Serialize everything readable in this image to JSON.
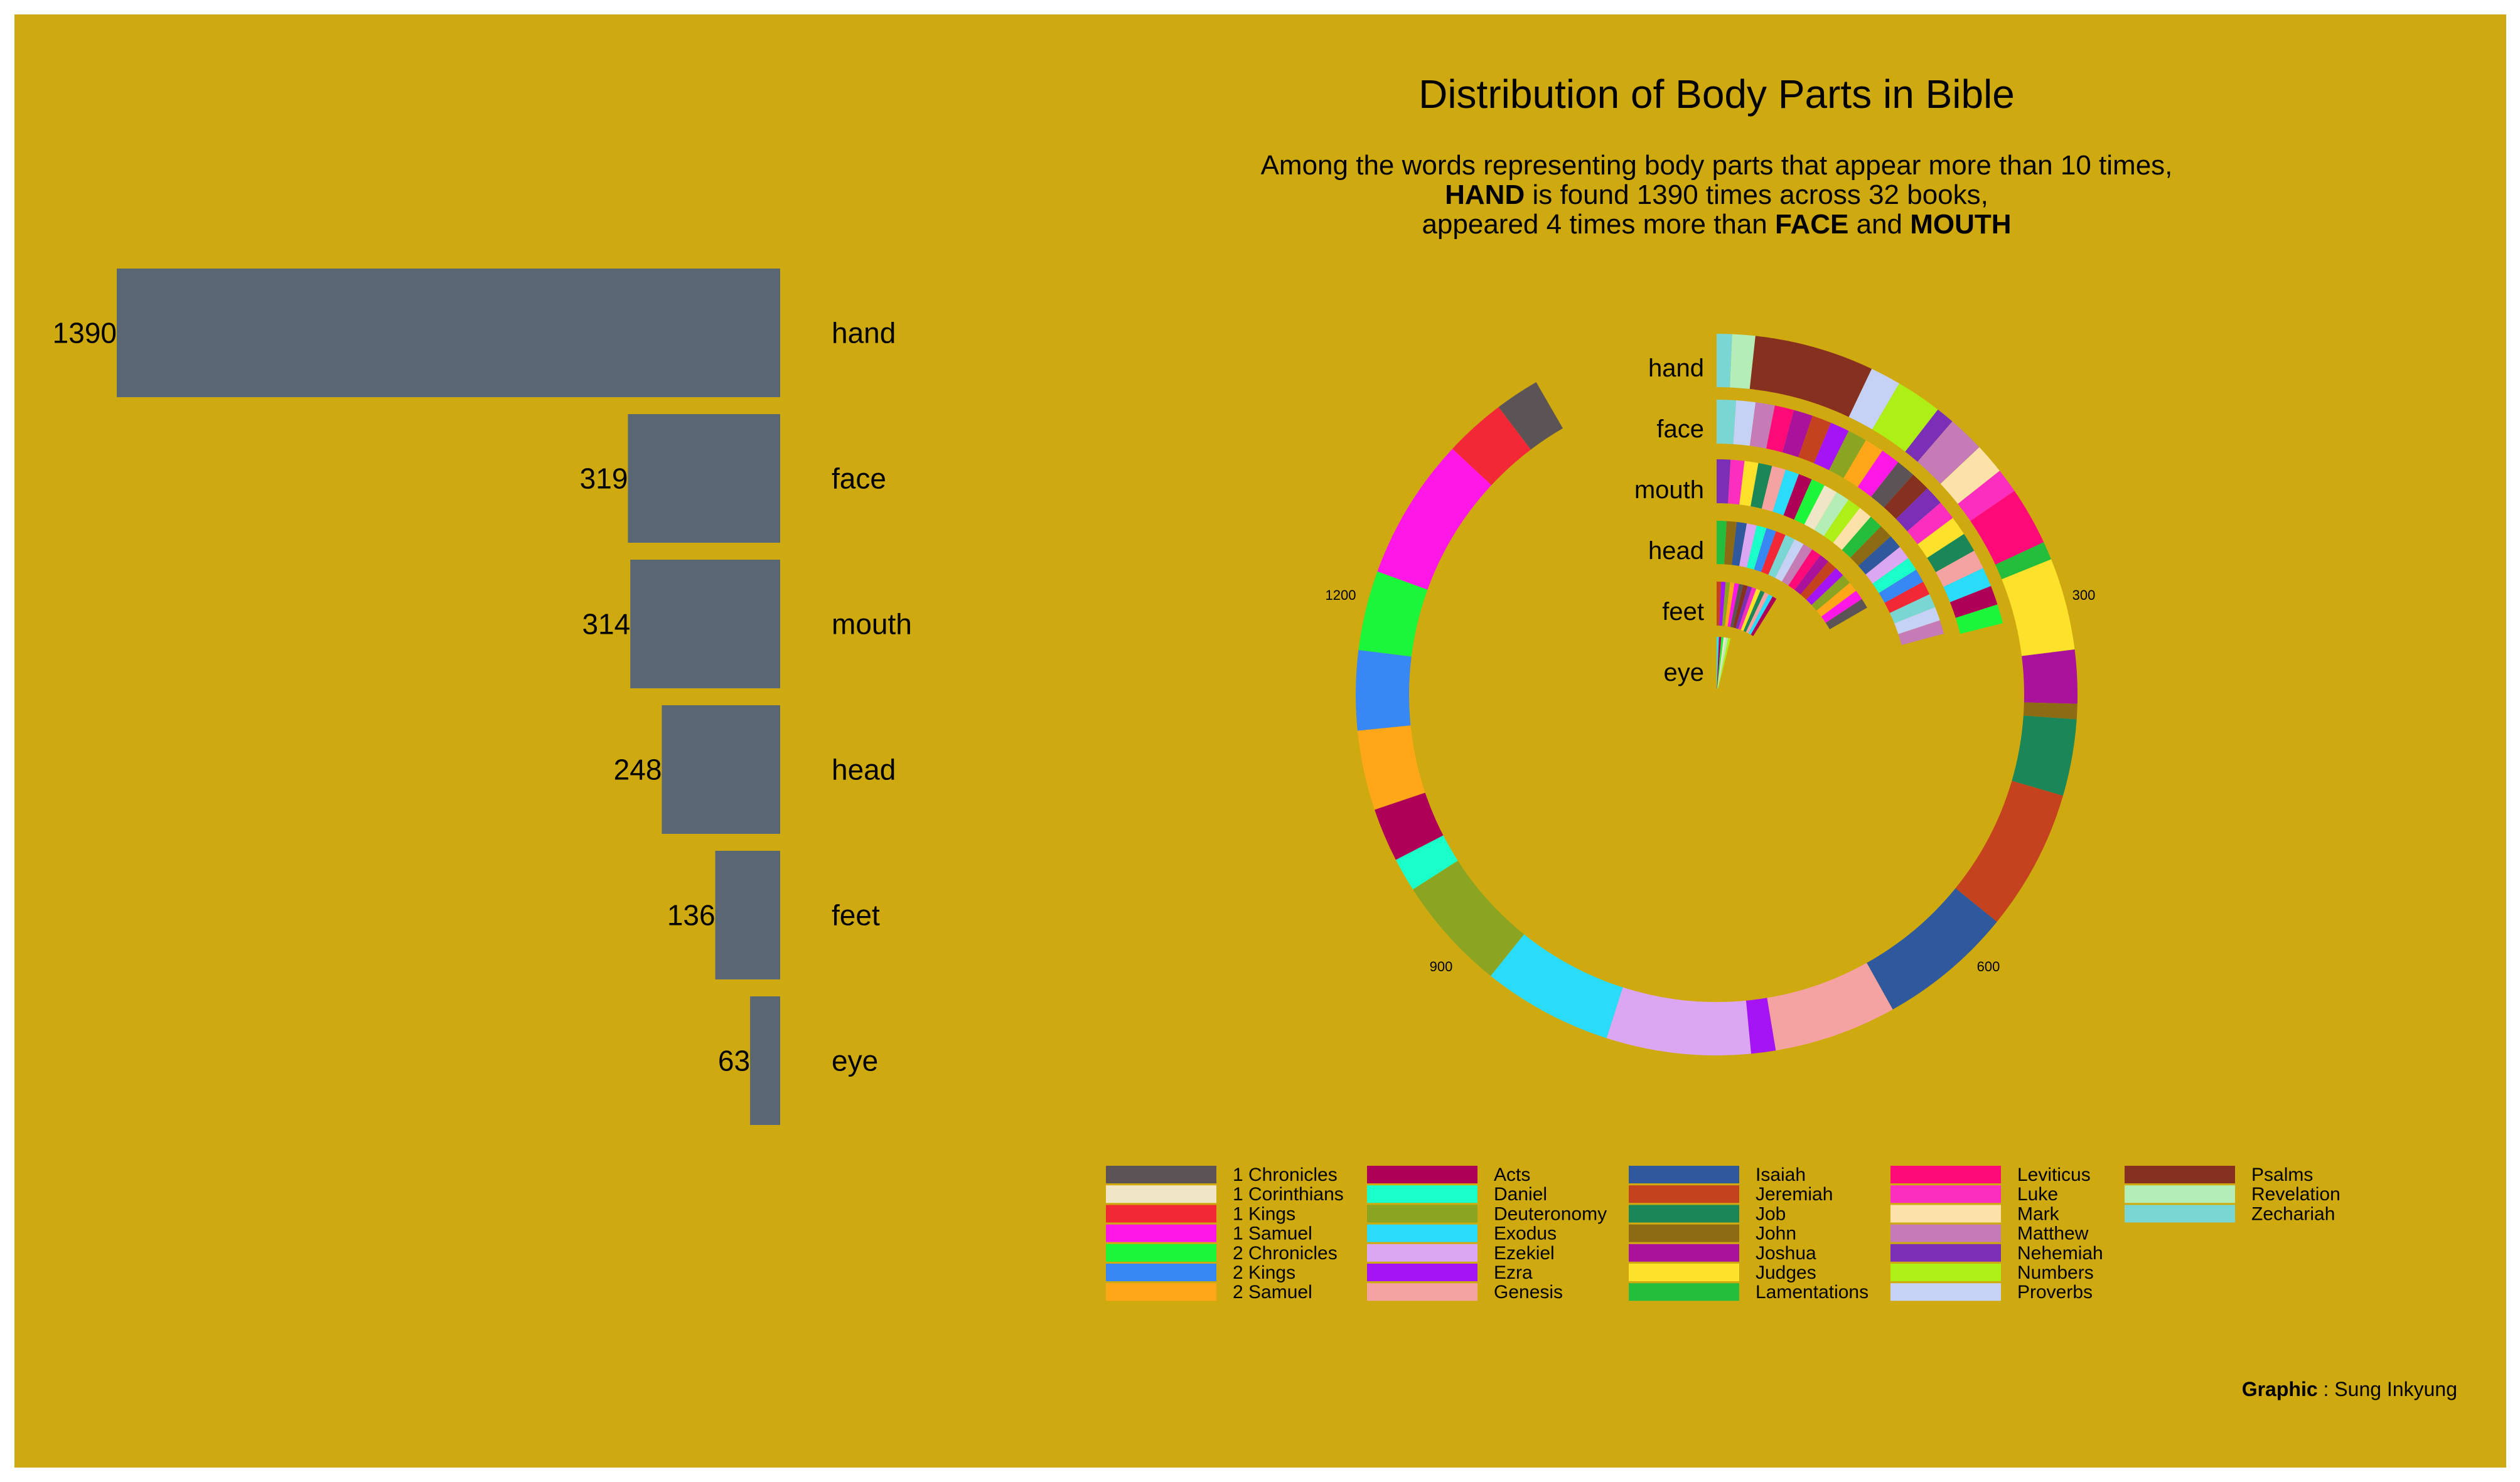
{
  "colors": {
    "background": "#CFA910",
    "bar": "#596673"
  },
  "header": {
    "title": "Distribution of Body Parts in Bible",
    "subtitle_line1": "Among the words representing body parts that appear more than 10 times,",
    "subtitle_line2_bold": "HAND",
    "subtitle_line2_rest": " is found 1390 times across 32 books,",
    "subtitle_line3_pre": "appeared 4 times more than ",
    "subtitle_line3_b1": "FACE",
    "subtitle_line3_mid": " and ",
    "subtitle_line3_b2": "MOUTH"
  },
  "credit": {
    "label": "Graphic",
    "sep": " : ",
    "name": "Sung Inkyung"
  },
  "chart_data": [
    {
      "type": "bar",
      "orientation": "horizontal",
      "categories": [
        "hand",
        "face",
        "mouth",
        "head",
        "feet",
        "eye"
      ],
      "values": [
        1390,
        319,
        314,
        248,
        136,
        63
      ],
      "value_labels": [
        "1390",
        "319",
        "314",
        "248",
        "136",
        "63"
      ]
    },
    {
      "type": "radial-stacked-bar",
      "rings": [
        "hand",
        "face",
        "mouth",
        "head",
        "feet",
        "eye"
      ],
      "axis_ticks": [
        "300",
        "600",
        "900",
        "1200"
      ],
      "legend_placement": "bottom",
      "books": [
        {
          "name": "1 Chronicles",
          "color": "#5C5356"
        },
        {
          "name": "1 Corinthians",
          "color": "#EEE6C6"
        },
        {
          "name": "1 Kings",
          "color": "#F32836"
        },
        {
          "name": "1 Samuel",
          "color": "#FF17E8"
        },
        {
          "name": "2 Chronicles",
          "color": "#1BF53A"
        },
        {
          "name": "2 Kings",
          "color": "#3787F4"
        },
        {
          "name": "2 Samuel",
          "color": "#FFA719"
        },
        {
          "name": "Acts",
          "color": "#AF0057"
        },
        {
          "name": "Daniel",
          "color": "#1AFFC9"
        },
        {
          "name": "Deuteronomy",
          "color": "#8BA522"
        },
        {
          "name": "Exodus",
          "color": "#2BDCFA"
        },
        {
          "name": "Ezekiel",
          "color": "#DBA6F2"
        },
        {
          "name": "Ezra",
          "color": "#A414F4"
        },
        {
          "name": "Genesis",
          "color": "#F5A3A2"
        },
        {
          "name": "Isaiah",
          "color": "#30589D"
        },
        {
          "name": "Jeremiah",
          "color": "#C4431E"
        },
        {
          "name": "Job",
          "color": "#1B8758"
        },
        {
          "name": "John",
          "color": "#8D6A14"
        },
        {
          "name": "Joshua",
          "color": "#AA129C"
        },
        {
          "name": "Judges",
          "color": "#FDE12B"
        },
        {
          "name": "Lamentations",
          "color": "#25BE3C"
        },
        {
          "name": "Leviticus",
          "color": "#FF0A78"
        },
        {
          "name": "Luke",
          "color": "#FC2EC0"
        },
        {
          "name": "Mark",
          "color": "#FCE2A9"
        },
        {
          "name": "Matthew",
          "color": "#C57BB6"
        },
        {
          "name": "Nehemiah",
          "color": "#7B2FB6"
        },
        {
          "name": "Numbers",
          "color": "#AEEF17"
        },
        {
          "name": "Proverbs",
          "color": "#C6D2F5"
        },
        {
          "name": "Psalms",
          "color": "#86301F"
        },
        {
          "name": "Revelation",
          "color": "#B4EDB6"
        },
        {
          "name": "Zechariah",
          "color": "#7AD6D3"
        }
      ],
      "hand_segments": [
        {
          "book": "Zechariah",
          "value": 10
        },
        {
          "book": "Revelation",
          "value": 15
        },
        {
          "book": "Psalms",
          "value": 78
        },
        {
          "book": "Proverbs",
          "value": 20
        },
        {
          "book": "Numbers",
          "value": 30
        },
        {
          "book": "Nehemiah",
          "value": 12
        },
        {
          "book": "Matthew",
          "value": 24
        },
        {
          "book": "Mark",
          "value": 20
        },
        {
          "book": "Luke",
          "value": 16
        },
        {
          "book": "Leviticus",
          "value": 38
        },
        {
          "book": "Lamentations",
          "value": 12
        },
        {
          "book": "Judges",
          "value": 60
        },
        {
          "book": "Joshua",
          "value": 35
        },
        {
          "book": "John",
          "value": 10
        },
        {
          "book": "Job",
          "value": 50
        },
        {
          "book": "Jeremiah",
          "value": 92
        },
        {
          "book": "Isaiah",
          "value": 88
        },
        {
          "book": "Genesis",
          "value": 80
        },
        {
          "book": "Ezra",
          "value": 16
        },
        {
          "book": "Ezekiel",
          "value": 94
        },
        {
          "book": "Exodus",
          "value": 85
        },
        {
          "book": "Deuteronomy",
          "value": 75
        },
        {
          "book": "Daniel",
          "value": 22
        },
        {
          "book": "Acts",
          "value": 35
        },
        {
          "book": "2 Samuel",
          "value": 52
        },
        {
          "book": "2 Kings",
          "value": 52
        },
        {
          "book": "2 Chronicles",
          "value": 52
        },
        {
          "book": "1 Samuel",
          "value": 93
        },
        {
          "book": "1 Kings",
          "value": 40
        },
        {
          "book": "1 Chronicles",
          "value": 29
        }
      ]
    }
  ]
}
